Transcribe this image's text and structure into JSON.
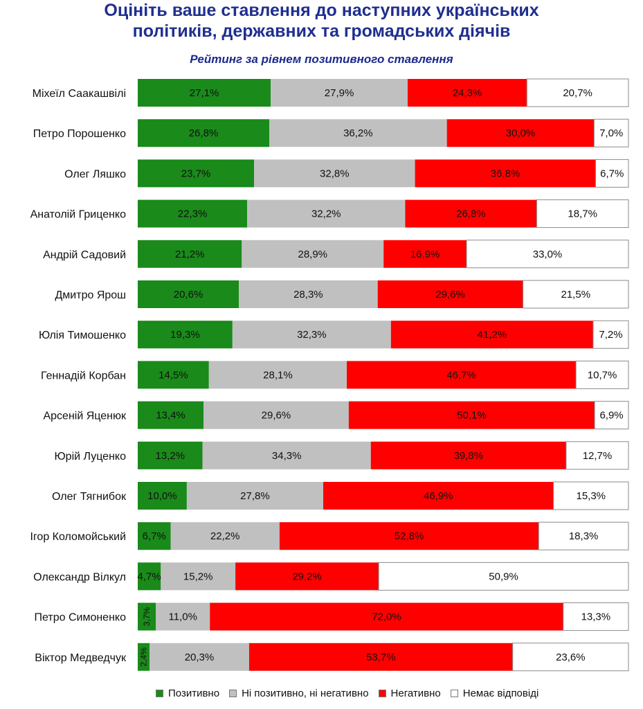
{
  "chart_data": {
    "type": "bar",
    "orientation": "horizontal",
    "stacked": true,
    "title_lines": [
      "Оцініть ваше ставлення до наступних українських",
      "політиків, державних та громадських діячів"
    ],
    "subtitle": "Рейтинг за рівнем позитивного ставлення",
    "legend_position": "bottom",
    "categories": [
      "Міхеїл Саакашвілі",
      "Петро Порошенко",
      "Олег Ляшко",
      "Анатолій Гриценко",
      "Андрій Садовий",
      "Дмитро Ярош",
      "Юлія Тимошенко",
      "Геннадій Корбан",
      "Арсеній Яценюк",
      "Юрій Луценко",
      "Олег Тягнибок",
      "Ігор Коломойський",
      "Олександр Вілкул",
      "Петро Симоненко",
      "Віктор Медведчук"
    ],
    "series": [
      {
        "name": "Позитивно",
        "color": "#1a8a1a",
        "values": [
          27.1,
          26.8,
          23.7,
          22.3,
          21.2,
          20.6,
          19.3,
          14.5,
          13.4,
          13.2,
          10.0,
          6.7,
          4.7,
          3.7,
          2.4
        ],
        "labels": [
          "27,1%",
          "26,8%",
          "23,7%",
          "22,3%",
          "21,2%",
          "20,6%",
          "19,3%",
          "14,5%",
          "13,4%",
          "13,2%",
          "10,0%",
          "6,7%",
          "4,7%",
          "3,7%",
          "2,4%"
        ]
      },
      {
        "name": "Ні позитивно, ні негативно",
        "color": "#c0c0c0",
        "values": [
          27.9,
          36.2,
          32.8,
          32.2,
          28.9,
          28.3,
          32.3,
          28.1,
          29.6,
          34.3,
          27.8,
          22.2,
          15.2,
          11.0,
          20.3
        ],
        "labels": [
          "27,9%",
          "36,2%",
          "32,8%",
          "32,2%",
          "28,9%",
          "28,3%",
          "32,3%",
          "28,1%",
          "29,6%",
          "34,3%",
          "27,8%",
          "22,2%",
          "15,2%",
          "11,0%",
          "20,3%"
        ]
      },
      {
        "name": "Негативно",
        "color": "#ff0000",
        "values": [
          24.3,
          30.0,
          36.8,
          26.8,
          16.9,
          29.6,
          41.2,
          46.7,
          50.1,
          39.8,
          46.9,
          52.8,
          29.2,
          72.0,
          53.7
        ],
        "labels": [
          "24,3%",
          "30,0%",
          "36,8%",
          "26,8%",
          "16,9%",
          "29,6%",
          "41,2%",
          "46,7%",
          "50,1%",
          "39,8%",
          "46,9%",
          "52,8%",
          "29,2%",
          "72,0%",
          "53,7%"
        ]
      },
      {
        "name": "Немає відповіді",
        "color": "#ffffff",
        "values": [
          20.7,
          7.0,
          6.7,
          18.7,
          33.0,
          21.5,
          7.2,
          10.7,
          6.9,
          12.7,
          15.3,
          18.3,
          50.9,
          13.3,
          23.6
        ],
        "labels": [
          "20,7%",
          "7,0%",
          "6,7%",
          "18,7%",
          "33,0%",
          "21,5%",
          "7,2%",
          "10,7%",
          "6,9%",
          "12,7%",
          "15,3%",
          "18,3%",
          "50,9%",
          "13,3%",
          "23,6%"
        ]
      }
    ]
  }
}
